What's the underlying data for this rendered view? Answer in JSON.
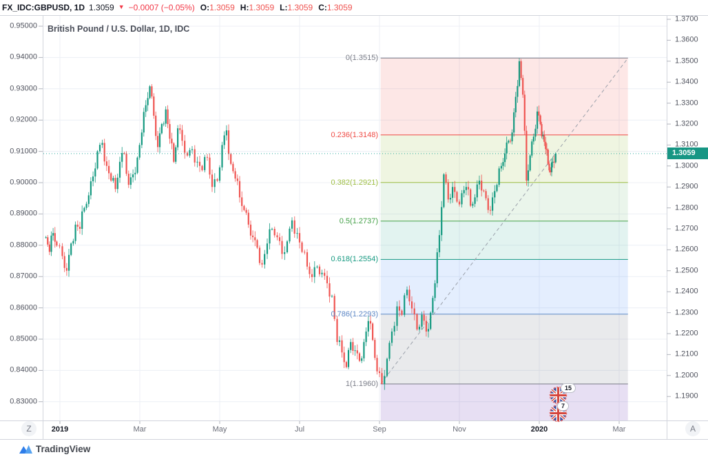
{
  "header": {
    "symbol": "FX_IDC:GBPUSD, 1D",
    "last_price": "1.3059",
    "direction_icon": "down-triangle",
    "change": "−0.0007 (−0.05%)",
    "ohlc": [
      {
        "label": "O:",
        "value": "1.3059"
      },
      {
        "label": "H:",
        "value": "1.3059"
      },
      {
        "label": "L:",
        "value": "1.3059"
      },
      {
        "label": "C:",
        "value": "1.3059"
      }
    ]
  },
  "chart": {
    "title": "British Pound / U.S. Dollar, 1D, IDC",
    "price_badge": "1.3059",
    "colors": {
      "up": "#149980",
      "down": "#ef5350",
      "price_line": "#26a69a",
      "badge": "#179684",
      "trend_dash": "#9aa0aa",
      "grid": "#eceff5",
      "border": "#d1d4dc",
      "tick_dash": "#b2b5be"
    }
  },
  "axes": {
    "left_ticks": [
      "0.95000",
      "0.94000",
      "0.93000",
      "0.92000",
      "0.91000",
      "0.90000",
      "0.89000",
      "0.88000",
      "0.87000",
      "0.86000",
      "0.85000",
      "0.84000",
      "0.83000"
    ],
    "right_ticks": [
      "1.3700",
      "1.3600",
      "1.3500",
      "1.3400",
      "1.3300",
      "1.3200",
      "1.3100",
      "1.3000",
      "1.2900",
      "1.2800",
      "1.2700",
      "1.2600",
      "1.2500",
      "1.2400",
      "1.2300",
      "1.2200",
      "1.2100",
      "1.2000",
      "1.1900"
    ],
    "time_ticks": [
      {
        "label": "2019",
        "bold": true,
        "t": 0
      },
      {
        "label": "Mar",
        "bold": false,
        "t": 2
      },
      {
        "label": "May",
        "bold": false,
        "t": 4
      },
      {
        "label": "Jul",
        "bold": false,
        "t": 6
      },
      {
        "label": "Sep",
        "bold": false,
        "t": 8
      },
      {
        "label": "Nov",
        "bold": false,
        "t": 10
      },
      {
        "label": "2020",
        "bold": true,
        "t": 12
      },
      {
        "label": "Mar",
        "bold": false,
        "t": 14
      }
    ],
    "zoom_out_button": "Z",
    "auto_button": "A"
  },
  "fib": {
    "levels": [
      {
        "ratio": "0",
        "price": "1.3515",
        "label": "0(1.3515)",
        "color": "#787b86",
        "fill": "rgba(239,83,80,0.14)"
      },
      {
        "ratio": "0.236",
        "price": "1.3148",
        "label": "0.236(1.3148)",
        "color": "#ef4a44",
        "fill": "rgba(156,190,66,0.16)"
      },
      {
        "ratio": "0.382",
        "price": "1.2921",
        "label": "0.382(1.2921)",
        "color": "#9dbd42",
        "fill": "rgba(103,183,110,0.14)"
      },
      {
        "ratio": "0.5",
        "price": "1.2737",
        "label": "0.5(1.2737)",
        "color": "#43a047",
        "fill": "rgba(20,153,129,0.12)"
      },
      {
        "ratio": "0.618",
        "price": "1.2554",
        "label": "0.618(1.2554)",
        "color": "#159980",
        "fill": "rgba(66,135,245,0.14)"
      },
      {
        "ratio": "0.786",
        "price": "1.2293",
        "label": "0.786(1.2293)",
        "color": "#5b86c5",
        "fill": "rgba(120,123,134,0.16)"
      },
      {
        "ratio": "1",
        "price": "1.1960",
        "label": "1(1.1960)",
        "color": "#787b86",
        "fill": "rgba(103,58,183,0.16)"
      }
    ],
    "zone_t_start": 8.03,
    "zone_t_end": 14.22
  },
  "events": [
    {
      "flag": "uk-flag-icon",
      "count": "15"
    },
    {
      "flag": "uk-flag-icon",
      "count": "7"
    }
  ],
  "footer": {
    "brand": "TradingView"
  },
  "chart_data": {
    "type": "candlestick",
    "symbol": "GBPUSD",
    "timeframe": "1D",
    "title": "British Pound / U.S. Dollar, 1D, IDC",
    "right_axis_range": [
      1.19,
      1.37
    ],
    "left_axis_range": [
      0.83,
      0.95
    ],
    "time_axis_note": "t = months since Jan 2019; visible range Dec 2018 – Mar 2020",
    "swing_high": {
      "t": 11.5,
      "price": 1.3515,
      "when": "Dec 2019"
    },
    "swing_low": {
      "t": 8.06,
      "price": 1.1959,
      "when": "Sep 2019"
    },
    "last_close": 1.3059,
    "current_price_line": 1.3059,
    "closes": [
      [
        -0.35,
        1.266
      ],
      [
        -0.26,
        1.259
      ],
      [
        -0.17,
        1.268
      ],
      [
        -0.08,
        1.262
      ],
      [
        0.06,
        1.257
      ],
      [
        0.17,
        1.25
      ],
      [
        0.28,
        1.263
      ],
      [
        0.39,
        1.272
      ],
      [
        0.5,
        1.27
      ],
      [
        0.61,
        1.28
      ],
      [
        0.72,
        1.286
      ],
      [
        0.83,
        1.295
      ],
      [
        0.94,
        1.307
      ],
      [
        1.06,
        1.311
      ],
      [
        1.17,
        1.3
      ],
      [
        1.28,
        1.293
      ],
      [
        1.39,
        1.289
      ],
      [
        1.5,
        1.302
      ],
      [
        1.61,
        1.306
      ],
      [
        1.72,
        1.291
      ],
      [
        1.83,
        1.296
      ],
      [
        1.94,
        1.304
      ],
      [
        2.05,
        1.316
      ],
      [
        2.15,
        1.329
      ],
      [
        2.25,
        1.338
      ],
      [
        2.35,
        1.324
      ],
      [
        2.45,
        1.309
      ],
      [
        2.55,
        1.32
      ],
      [
        2.65,
        1.327
      ],
      [
        2.75,
        1.313
      ],
      [
        2.85,
        1.302
      ],
      [
        2.95,
        1.318
      ],
      [
        3.06,
        1.312
      ],
      [
        3.19,
        1.305
      ],
      [
        3.31,
        1.308
      ],
      [
        3.44,
        1.302
      ],
      [
        3.56,
        1.298
      ],
      [
        3.69,
        1.304
      ],
      [
        3.81,
        1.29
      ],
      [
        3.94,
        1.293
      ],
      [
        4.06,
        1.31
      ],
      [
        4.17,
        1.317
      ],
      [
        4.28,
        1.301
      ],
      [
        4.39,
        1.294
      ],
      [
        4.5,
        1.285
      ],
      [
        4.61,
        1.279
      ],
      [
        4.72,
        1.272
      ],
      [
        4.83,
        1.266
      ],
      [
        4.94,
        1.261
      ],
      [
        5.06,
        1.253
      ],
      [
        5.19,
        1.263
      ],
      [
        5.31,
        1.27
      ],
      [
        5.44,
        1.266
      ],
      [
        5.56,
        1.258
      ],
      [
        5.69,
        1.264
      ],
      [
        5.81,
        1.274
      ],
      [
        5.94,
        1.268
      ],
      [
        6.06,
        1.259
      ],
      [
        6.19,
        1.252
      ],
      [
        6.31,
        1.247
      ],
      [
        6.44,
        1.252
      ],
      [
        6.56,
        1.249
      ],
      [
        6.69,
        1.244
      ],
      [
        6.81,
        1.238
      ],
      [
        6.94,
        1.216
      ],
      [
        7.06,
        1.211
      ],
      [
        7.17,
        1.204
      ],
      [
        7.28,
        1.216
      ],
      [
        7.39,
        1.212
      ],
      [
        7.5,
        1.207
      ],
      [
        7.61,
        1.216
      ],
      [
        7.72,
        1.226
      ],
      [
        7.83,
        1.217
      ],
      [
        7.94,
        1.202
      ],
      [
        8.06,
        1.196
      ],
      [
        8.19,
        1.208
      ],
      [
        8.31,
        1.221
      ],
      [
        8.44,
        1.233
      ],
      [
        8.56,
        1.229
      ],
      [
        8.69,
        1.241
      ],
      [
        8.81,
        1.232
      ],
      [
        8.94,
        1.222
      ],
      [
        9.06,
        1.229
      ],
      [
        9.17,
        1.221
      ],
      [
        9.28,
        1.23
      ],
      [
        9.39,
        1.244
      ],
      [
        9.5,
        1.267
      ],
      [
        9.61,
        1.296
      ],
      [
        9.72,
        1.284
      ],
      [
        9.83,
        1.29
      ],
      [
        9.94,
        1.283
      ],
      [
        10.06,
        1.287
      ],
      [
        10.17,
        1.29
      ],
      [
        10.28,
        1.281
      ],
      [
        10.39,
        1.285
      ],
      [
        10.5,
        1.293
      ],
      [
        10.61,
        1.288
      ],
      [
        10.72,
        1.279
      ],
      [
        10.83,
        1.285
      ],
      [
        10.94,
        1.291
      ],
      [
        11.05,
        1.3
      ],
      [
        11.14,
        1.306
      ],
      [
        11.23,
        1.312
      ],
      [
        11.32,
        1.316
      ],
      [
        11.41,
        1.333
      ],
      [
        11.5,
        1.35
      ],
      [
        11.59,
        1.334
      ],
      [
        11.68,
        1.293
      ],
      [
        11.77,
        1.305
      ],
      [
        11.86,
        1.314
      ],
      [
        11.95,
        1.326
      ],
      [
        12.03,
        1.32
      ],
      [
        12.09,
        1.315
      ],
      [
        12.16,
        1.308
      ],
      [
        12.22,
        1.301
      ],
      [
        12.28,
        1.297
      ],
      [
        12.34,
        1.302
      ],
      [
        12.41,
        1.3059
      ]
    ]
  }
}
